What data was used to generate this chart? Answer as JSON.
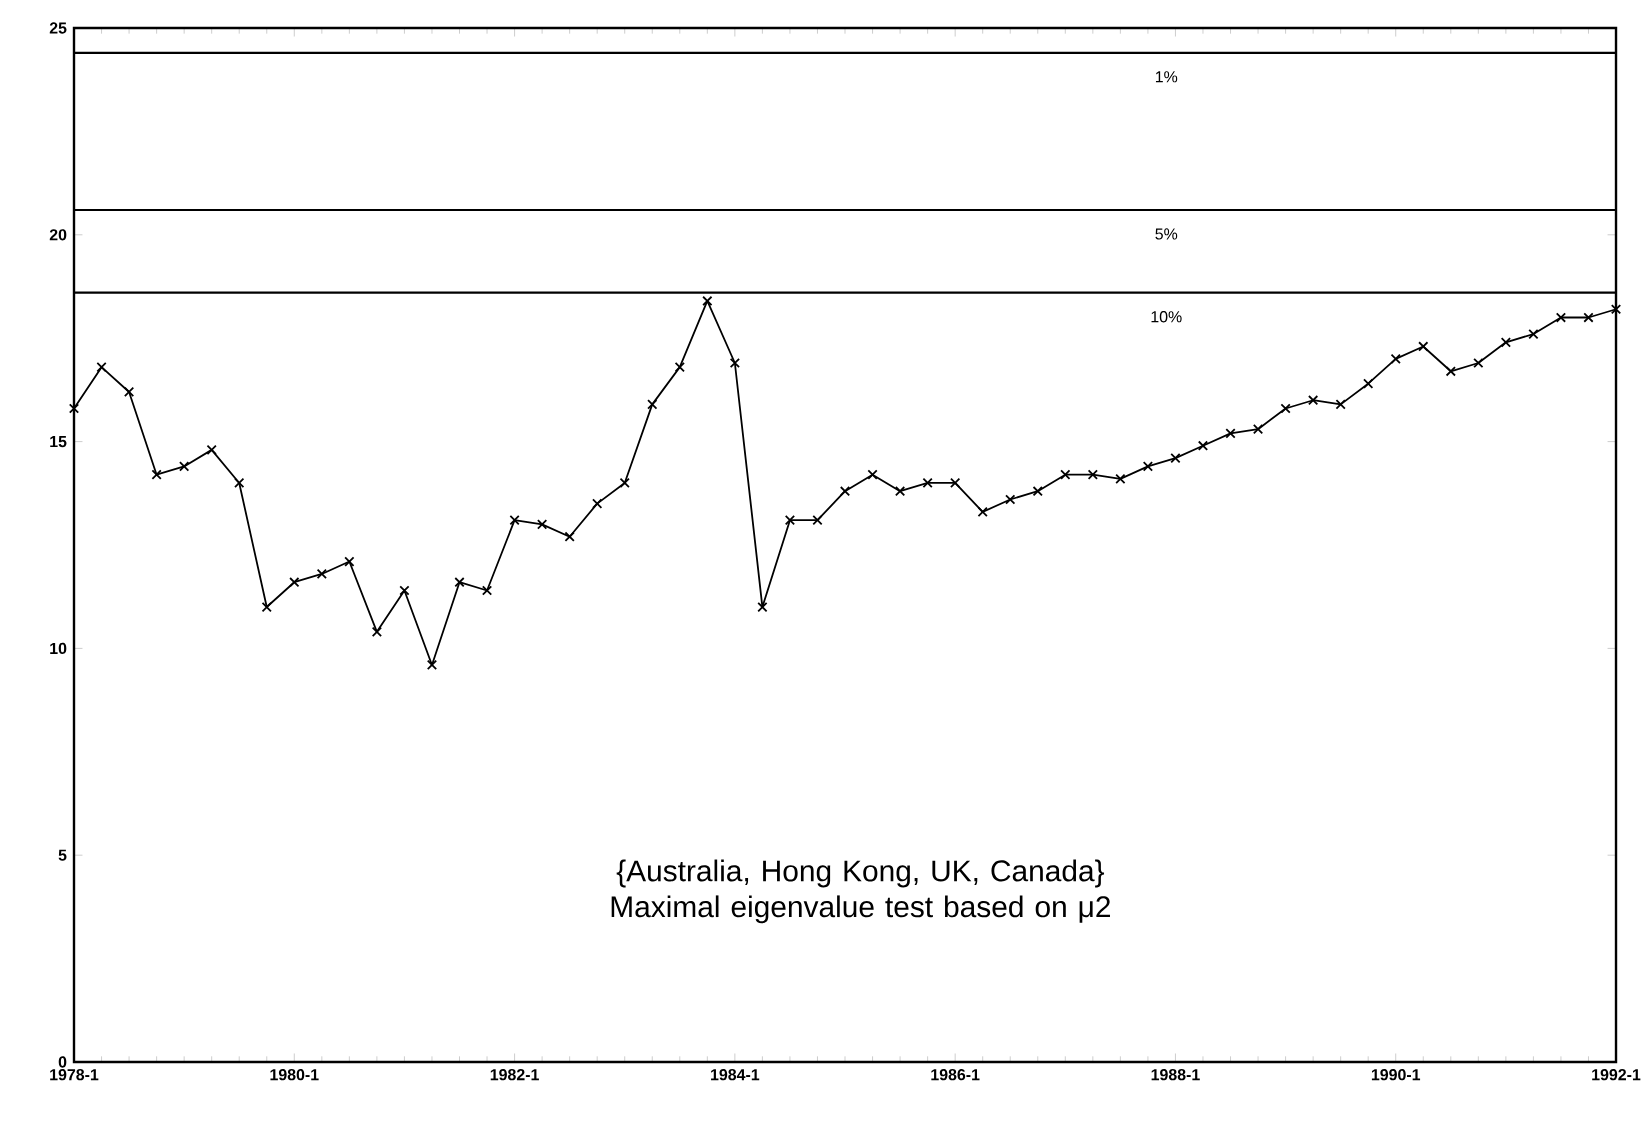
{
  "chart_data": {
    "type": "line",
    "x": [
      "1978-01",
      "1978-04",
      "1978-07",
      "1978-10",
      "1979-01",
      "1979-04",
      "1979-07",
      "1979-10",
      "1980-01",
      "1980-04",
      "1980-07",
      "1980-10",
      "1981-01",
      "1981-04",
      "1981-07",
      "1981-10",
      "1982-01",
      "1982-04",
      "1982-07",
      "1982-10",
      "1983-01",
      "1983-04",
      "1983-07",
      "1983-10",
      "1984-01",
      "1984-04",
      "1984-07",
      "1984-10",
      "1985-01",
      "1985-04",
      "1985-07",
      "1985-10",
      "1986-01",
      "1986-04",
      "1986-07",
      "1986-10",
      "1987-01",
      "1987-04",
      "1987-07",
      "1987-10",
      "1988-01",
      "1988-04",
      "1988-07",
      "1988-10",
      "1989-01",
      "1989-04",
      "1989-07",
      "1989-10",
      "1990-01",
      "1990-04",
      "1990-07",
      "1990-10",
      "1991-01",
      "1991-04",
      "1991-07",
      "1991-10",
      "1992-01"
    ],
    "series": [
      {
        "color": "#000000",
        "values": [
          15.8,
          16.8,
          16.2,
          14.2,
          14.4,
          14.8,
          14.0,
          11.0,
          11.6,
          11.8,
          12.1,
          10.4,
          11.4,
          9.6,
          11.6,
          11.4,
          13.1,
          13.0,
          12.7,
          13.5,
          14.0,
          15.9,
          16.8,
          18.4,
          16.9,
          11.0,
          13.1,
          13.1,
          13.8,
          14.2,
          13.8,
          14.0,
          14.0,
          13.3,
          13.6,
          13.8,
          14.2,
          14.2,
          14.1,
          14.4,
          14.6,
          14.9,
          15.2,
          15.3,
          15.8,
          16.0,
          15.9,
          16.4,
          17.0,
          17.3,
          16.7,
          16.9,
          17.4,
          17.6,
          18.0,
          18.0,
          18.2
        ]
      }
    ],
    "xlim": [
      "1978-01",
      "1992-01"
    ],
    "xticks": [
      {
        "value": "1978-01",
        "label": "1978-1"
      },
      {
        "value": "1980-01",
        "label": "1980-1"
      },
      {
        "value": "1982-01",
        "label": "1982-1"
      },
      {
        "value": "1984-01",
        "label": "1984-1"
      },
      {
        "value": "1986-01",
        "label": "1986-1"
      },
      {
        "value": "1988-01",
        "label": "1988-1"
      },
      {
        "value": "1990-01",
        "label": "1990-1"
      },
      {
        "value": "1992-01",
        "label": "1992-1"
      }
    ],
    "ylim": [
      0,
      25
    ],
    "yticks": [
      0,
      5,
      10,
      15,
      20,
      25
    ],
    "ref_lines": [
      {
        "axis": "y",
        "value": 24.4
      },
      {
        "axis": "y",
        "value": 20.6
      },
      {
        "axis": "y",
        "value": 18.6
      }
    ],
    "annotations": [
      {
        "text": "1%",
        "x": "1987-12",
        "y": 24.4
      },
      {
        "text": "5%",
        "x": "1987-12",
        "y": 20.6
      },
      {
        "text": "10%",
        "x": "1987-12",
        "y": 18.6
      },
      "{Australia, Hong Kong, UK, Canada} Maximal eigenvalue test based on μ2"
    ],
    "marker": "cross",
    "line_style": "solid"
  }
}
